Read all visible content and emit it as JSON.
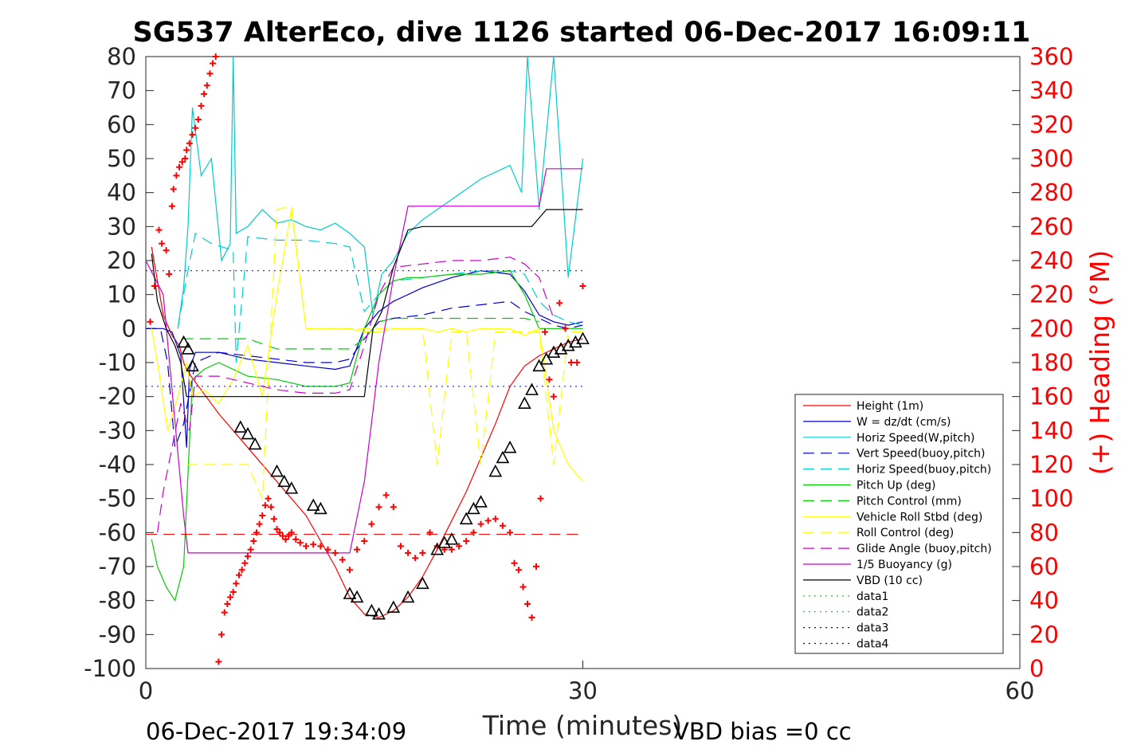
{
  "chart_data": {
    "type": "line",
    "title": "SG537 AlterEco, dive 1126 started 06-Dec-2017 16:09:11",
    "xlabel": "Time (minutes)",
    "ylabel": "",
    "ylabel_right": "(+) Heading (°M)",
    "xlim": [
      0,
      60
    ],
    "ylim": [
      -100,
      80
    ],
    "ylim_right": [
      0,
      360
    ],
    "x_ticks": [
      "0",
      "30",
      "60"
    ],
    "y_ticks": [
      "80",
      "70",
      "60",
      "50",
      "40",
      "30",
      "20",
      "10",
      "0",
      "-10",
      "-20",
      "-30",
      "-40",
      "-50",
      "-60",
      "-70",
      "-80",
      "-90",
      "-100"
    ],
    "y_ticks_right": [
      "360",
      "340",
      "320",
      "300",
      "280",
      "260",
      "240",
      "220",
      "200",
      "180",
      "160",
      "140",
      "120",
      "100",
      "80",
      "60",
      "40",
      "20",
      "0"
    ],
    "footer_left": "06-Dec-2017 19:34:09",
    "footer_right": "VBD bias =0 cc",
    "legend_position": "lower-right",
    "grid": false,
    "series": [
      {
        "name": "Height (1m)",
        "color": "#ff0000",
        "style": "solid",
        "x": [
          0.4,
          0.8,
          1.2,
          1.8,
          2.3,
          2.6,
          2.8,
          3.1,
          5,
          7,
          9,
          11,
          13,
          14,
          15,
          16,
          17,
          18,
          19,
          20,
          22,
          24,
          25,
          26,
          27,
          28,
          29,
          30
        ],
        "y": [
          24,
          14,
          4,
          -2,
          -5,
          -10,
          -12,
          -14,
          -25,
          -35,
          -45,
          -55,
          -70,
          -79,
          -84,
          -85,
          -83,
          -79,
          -73,
          -65,
          -48,
          -28,
          -17,
          -11,
          -8,
          -6,
          -4,
          -3
        ]
      },
      {
        "name": "W = dz/dt (cm/s)",
        "color": "#0000cc",
        "style": "solid",
        "x": [
          0,
          1.2,
          1.8,
          2.4,
          2.8,
          3.0,
          3.4,
          5,
          7,
          9,
          11,
          13,
          14,
          15,
          16,
          17,
          18,
          19,
          21,
          23,
          25,
          26,
          27,
          28,
          29,
          30
        ],
        "y": [
          0,
          0,
          -1,
          -8,
          -35,
          -12,
          -7,
          -7,
          -9,
          -10,
          -11,
          -12,
          -11,
          0,
          5,
          8,
          10,
          12,
          15,
          17,
          16,
          11,
          4,
          2,
          1,
          2
        ]
      },
      {
        "name": "Horiz Speed(W,pitch)",
        "color": "#00cccc",
        "style": "solid",
        "x": [
          2.2,
          2.6,
          2.9,
          3.2,
          3.8,
          4.5,
          5.2,
          5.8,
          6.0,
          6.2,
          7,
          8,
          9,
          10,
          11,
          12,
          13,
          14,
          15,
          15.6,
          16.2,
          17,
          18,
          19,
          21,
          23,
          25,
          25.8,
          26.2,
          27,
          28,
          29,
          30
        ],
        "y": [
          0,
          12,
          30,
          65,
          45,
          50,
          20,
          25,
          80,
          28,
          30,
          35,
          31,
          32,
          30,
          29,
          31,
          28,
          24,
          4,
          16,
          20,
          28,
          32,
          38,
          44,
          48,
          40,
          80,
          35,
          80,
          15,
          50
        ]
      },
      {
        "name": "Vert Speed(buoy,pitch)",
        "color": "#0000cc",
        "style": "dashed",
        "x": [
          0,
          1.0,
          1.5,
          2.0,
          2.6,
          3.4,
          5,
          7,
          9,
          11,
          13,
          14,
          15,
          16,
          17,
          19,
          21,
          23,
          25,
          26,
          27,
          28,
          29,
          30
        ],
        "y": [
          0,
          0,
          -10,
          -35,
          -28,
          -10,
          -7,
          -8,
          -9,
          -10,
          -10,
          -9,
          -3,
          2,
          3,
          4,
          6,
          7,
          8,
          5,
          3,
          1,
          0,
          1
        ]
      },
      {
        "name": "Horiz Speed(buoy,pitch)",
        "color": "#00cccc",
        "style": "dashed",
        "x": [
          2.2,
          2.8,
          3.4,
          4.5,
          6.0,
          6.2,
          7,
          9,
          11,
          13,
          14,
          15,
          16,
          17,
          19,
          21,
          23,
          25,
          26,
          27,
          28,
          29,
          30
        ],
        "y": [
          0,
          15,
          28,
          25,
          23,
          -10,
          27,
          26,
          26,
          25,
          24,
          5,
          10,
          14,
          15,
          16,
          17,
          17,
          16,
          8,
          4,
          2,
          1
        ]
      },
      {
        "name": "Pitch Up (deg)",
        "color": "#00cc00",
        "style": "solid",
        "x": [
          0.4,
          0.8,
          1.4,
          2.0,
          2.6,
          3.2,
          4,
          5,
          7,
          9,
          11,
          13,
          14,
          15,
          16,
          17,
          18,
          19,
          21,
          23,
          25,
          26,
          27,
          28,
          29,
          30
        ],
        "y": [
          -62,
          -70,
          -76,
          -80,
          -70,
          -15,
          -12,
          -10,
          -14,
          -15,
          -17,
          -17,
          -16,
          0,
          10,
          14,
          15,
          15,
          16,
          16,
          17,
          10,
          0,
          0,
          0,
          0
        ]
      },
      {
        "name": "Pitch Control (mm)",
        "color": "#00cc00",
        "style": "dashed",
        "x": [
          2.5,
          3.0,
          5,
          7,
          9,
          11,
          13,
          14,
          15,
          16,
          17,
          19,
          21,
          23,
          25,
          26,
          27
        ],
        "y": [
          -3,
          -3,
          -3,
          -3,
          -6,
          -6,
          -6,
          -6,
          -3,
          2,
          3,
          3,
          3,
          3,
          3,
          3,
          2
        ]
      },
      {
        "name": "Vehicle Roll Stbd (deg)",
        "color": "#ffff00",
        "style": "solid",
        "x": [
          0.4,
          0.8,
          1.5,
          2.2,
          2.8,
          3.2,
          4,
          5,
          6,
          7,
          8,
          9,
          10,
          11,
          12,
          13,
          14,
          15,
          16,
          17,
          18,
          19,
          20,
          21,
          22,
          23,
          24,
          25,
          26,
          27,
          28,
          29,
          30
        ],
        "y": [
          0,
          -10,
          -30,
          -20,
          -10,
          -20,
          -18,
          -22,
          -15,
          -5,
          -20,
          10,
          35,
          0,
          0,
          0,
          0,
          -1,
          -1,
          0,
          0,
          0,
          -1,
          0,
          -1,
          0,
          0,
          0,
          -2,
          0,
          -30,
          -40,
          -45
        ]
      },
      {
        "name": "Roll Control (deg)",
        "color": "#ffff00",
        "style": "dashed",
        "x": [
          2.8,
          3.2,
          5,
          7,
          8,
          9,
          10,
          11,
          12,
          13,
          14,
          15,
          16,
          17,
          18,
          19,
          20,
          21,
          22,
          23,
          24,
          25,
          26,
          27,
          28,
          29,
          30
        ],
        "y": [
          -40,
          -40,
          -40,
          -40,
          -50,
          35,
          36,
          0,
          0,
          0,
          0,
          0,
          0,
          0,
          0,
          0,
          -40,
          -1,
          -1,
          -40,
          -1,
          -1,
          -1,
          -1,
          -40,
          -1,
          -1
        ]
      },
      {
        "name": "Glide Angle (buoy,pitch)",
        "color": "#cc00cc",
        "style": "dashed",
        "x": [
          0.8,
          1.2,
          1.8,
          2.4,
          3.0,
          3.4,
          5,
          7,
          9,
          11,
          13,
          14,
          15,
          16,
          17,
          19,
          21,
          23,
          25,
          26,
          27,
          28
        ],
        "y": [
          -60,
          -48,
          -35,
          -22,
          -30,
          -14,
          -14,
          -16,
          -18,
          -19,
          -19,
          -18,
          -5,
          10,
          18,
          19,
          20,
          20,
          21,
          19,
          15,
          3
        ]
      },
      {
        "name": "1/5 Buoyancy (g)",
        "color": "#cc00cc",
        "style": "solid",
        "x": [
          0,
          1.2,
          2.6,
          2.9,
          5,
          7,
          9,
          11,
          13,
          14,
          15,
          16,
          17,
          18,
          19,
          21,
          23,
          25,
          27,
          27.5,
          28,
          29,
          30
        ],
        "y": [
          20,
          10,
          -55,
          -66,
          -66,
          -66,
          -66,
          -66,
          -66,
          -66,
          -45,
          -10,
          15,
          36,
          36,
          36,
          36,
          36,
          36,
          47,
          47,
          47,
          47
        ]
      },
      {
        "name": "VBD (10 cc)",
        "color": "#000000",
        "style": "solid",
        "x": [
          0.4,
          0.8,
          1.4,
          2.0,
          2.4,
          2.8,
          5,
          7,
          9,
          11,
          13,
          14,
          15,
          15.6,
          16.2,
          17,
          18,
          19,
          21,
          23,
          25,
          26.5,
          27.5,
          28,
          29,
          30
        ],
        "y": [
          22,
          8,
          0,
          -5,
          -10,
          -20,
          -20,
          -20,
          -20,
          -20,
          -20,
          -20,
          -20,
          0,
          5,
          18,
          29,
          30,
          30,
          30,
          30,
          30,
          35,
          35,
          35,
          35
        ]
      },
      {
        "name": "data1",
        "color": "#00cc00",
        "style": "dotted",
        "x": [],
        "y": []
      },
      {
        "name": "data2",
        "color": "#00cc00",
        "style": "dotted",
        "x": [],
        "y": []
      },
      {
        "name": "data3",
        "color": "#0000cc",
        "style": "dotted",
        "x": [],
        "y": []
      },
      {
        "name": "data4",
        "color": "#0000cc",
        "style": "dotted",
        "x": [],
        "y": []
      }
    ],
    "reference_lines": [
      {
        "axis": "left",
        "y": 17,
        "color": "#0000cc",
        "style": "dotted"
      },
      {
        "axis": "left",
        "y": -17,
        "color": "#0000cc",
        "style": "dotted"
      },
      {
        "axis": "right",
        "y": 79,
        "color": "#ff0000",
        "style": "dashed"
      }
    ],
    "heading_points": {
      "color": "#ff0000",
      "marker": "plus",
      "axis": "right",
      "x": [
        0.3,
        0.6,
        0.9,
        1.1,
        1.4,
        1.6,
        1.8,
        1.9,
        2.1,
        2.3,
        2.5,
        2.7,
        2.8,
        3.0,
        3.2,
        3.4,
        3.6,
        3.8,
        4.0,
        4.2,
        4.4,
        4.6,
        4.8,
        5.0,
        5.2,
        5.4,
        5.6,
        5.8,
        6.0,
        6.2,
        6.4,
        6.6,
        6.8,
        7.0,
        7.2,
        7.4,
        7.6,
        7.8,
        8.0,
        8.2,
        8.4,
        8.6,
        8.8,
        9.0,
        9.2,
        9.4,
        9.6,
        9.8,
        10.0,
        10.3,
        10.6,
        11.0,
        11.5,
        12.0,
        12.5,
        13.0,
        13.5,
        14.0,
        14.5,
        15.0,
        15.5,
        16.0,
        16.5,
        17.0,
        17.5,
        18.0,
        18.5,
        19.0,
        19.5,
        20.0,
        20.5,
        21.0,
        21.5,
        22.0,
        22.5,
        23.0,
        23.5,
        24.0,
        24.5,
        25.0,
        25.3,
        25.6,
        25.9,
        26.2,
        26.5,
        26.8,
        27.1,
        27.4,
        27.7,
        28.0,
        28.4,
        28.8,
        29.2,
        29.6,
        30.0
      ],
      "y": [
        204,
        225,
        258,
        250,
        246,
        232,
        272,
        282,
        290,
        295,
        298,
        300,
        305,
        309,
        314,
        318,
        323,
        331,
        338,
        343,
        350,
        356,
        360,
        4,
        20,
        33,
        38,
        42,
        45,
        50,
        55,
        58,
        62,
        66,
        70,
        75,
        80,
        85,
        90,
        96,
        100,
        95,
        88,
        82,
        80,
        78,
        76,
        78,
        80,
        76,
        74,
        72,
        73,
        72,
        70,
        68,
        64,
        58,
        70,
        75,
        85,
        95,
        102,
        95,
        72,
        68,
        65,
        68,
        80,
        72,
        70,
        70,
        72,
        75,
        80,
        85,
        87,
        88,
        84,
        80,
        62,
        58,
        48,
        38,
        30,
        60,
        100,
        198,
        170,
        160,
        215,
        200,
        180,
        180,
        225
      ]
    },
    "glider_markers": {
      "color": "#000000",
      "marker": "triangle",
      "x": [
        2.6,
        2.9,
        3.2,
        6.5,
        7.0,
        7.5,
        9.0,
        9.5,
        10.0,
        11.5,
        12.0,
        14.0,
        14.5,
        15.5,
        16.0,
        17.0,
        18.0,
        19.0,
        20.0,
        20.5,
        21.0,
        22.0,
        22.5,
        23.0,
        24.0,
        24.5,
        25.0,
        26.0,
        26.5,
        27.0,
        27.5,
        28.0,
        28.5,
        29.0,
        29.5,
        30.0
      ],
      "y": [
        -4,
        -6,
        -11,
        -29,
        -31,
        -34,
        -42,
        -45,
        -47,
        -52,
        -53,
        -78,
        -79,
        -83,
        -84,
        -82,
        -79,
        -75,
        -65,
        -63,
        -62,
        -56,
        -53,
        -51,
        -42,
        -38,
        -35,
        -22,
        -18,
        -11,
        -9,
        -7,
        -6,
        -5,
        -4,
        -3
      ]
    }
  }
}
